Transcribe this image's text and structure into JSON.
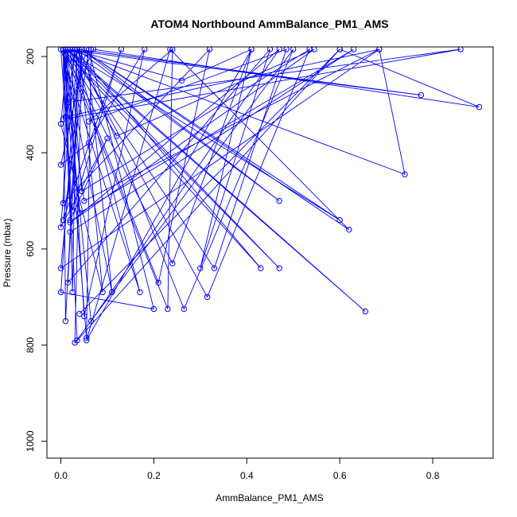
{
  "chart_data": {
    "type": "line",
    "title": "ATOM4 Northbound AmmBalance_PM1_AMS",
    "xlabel": "AmmBalance_PM1_AMS",
    "ylabel": "Pressure (mbar)",
    "xlim": [
      -0.03,
      0.93
    ],
    "ylim": [
      1035,
      180
    ],
    "y_reversed": true,
    "x_ticks": [
      0.0,
      0.2,
      0.4,
      0.6,
      0.8
    ],
    "x_tick_labels": [
      "0.0",
      "0.2",
      "0.4",
      "0.6",
      "0.8"
    ],
    "y_ticks": [
      200,
      400,
      600,
      800,
      1000
    ],
    "y_tick_labels": [
      "200",
      "400",
      "600",
      "800",
      "1000"
    ],
    "grid": false,
    "legend": "none",
    "series_color": "#0000ff",
    "series": [
      {
        "x": [
          0.005,
          0.01,
          0.04,
          0.09,
          0.0,
          0.015,
          0.05,
          0.18,
          0.06,
          0.0,
          0.055,
          0.11,
          0.005,
          0.02,
          0.1,
          0.0,
          0.03,
          0.17,
          0.0,
          0.025,
          0.13,
          0.005,
          0.06,
          0.2,
          0.0,
          0.035,
          0.025,
          0.01,
          0.21,
          0.32,
          0.005,
          0.015,
          0.33,
          0.485,
          0.06,
          0.24,
          0.23,
          0.005,
          0.065,
          0.47,
          0.02,
          0.545,
          0.12,
          0.01,
          0.655,
          0.015,
          0.47,
          0.005,
          0.05,
          0.685,
          0.0,
          0.045,
          0.6,
          0.01,
          0.04,
          0.63,
          0.02,
          0.045,
          0.62,
          0.235,
          0.055,
          0.41,
          0.24,
          0.005,
          0.43,
          0.03,
          0.01,
          0.685,
          0.74,
          0.02,
          0.045,
          0.535,
          0.315,
          0.025,
          0.26,
          0.41,
          0.3,
          0.45,
          0.015,
          0.04,
          0.265,
          0.5,
          0.03,
          0.045,
          0.47,
          0.035,
          0.775,
          0.005,
          0.015,
          0.86,
          0.005,
          0.07,
          0.9,
          0.6,
          0.04,
          0.6,
          0.035,
          0.005,
          0.055,
          0.065
        ],
        "y": [
          185,
          750,
          185,
          690,
          340,
          185,
          740,
          185,
          380,
          425,
          185,
          690,
          185,
          540,
          370,
          555,
          185,
          690,
          185,
          520,
          185,
          540,
          185,
          725,
          690,
          185,
          690,
          185,
          670,
          185,
          505,
          185,
          640,
          185,
          335,
          185,
          725,
          185,
          750,
          185,
          545,
          185,
          365,
          185,
          730,
          185,
          640,
          185,
          500,
          185,
          640,
          185,
          540,
          185,
          525,
          185,
          565,
          185,
          560,
          185,
          790,
          185,
          630,
          185,
          640,
          185,
          325,
          185,
          445,
          185,
          480,
          185,
          700,
          185,
          250,
          185,
          640,
          185,
          670,
          185,
          725,
          185,
          795,
          185,
          500,
          185,
          280,
          185,
          295,
          185,
          330,
          185,
          305,
          185,
          735,
          185,
          790,
          185,
          785,
          185
        ]
      }
    ]
  }
}
